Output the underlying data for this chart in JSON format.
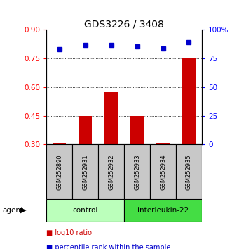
{
  "title": "GDS3226 / 3408",
  "samples": [
    "GSM252890",
    "GSM252931",
    "GSM252932",
    "GSM252933",
    "GSM252934",
    "GSM252935"
  ],
  "log10_ratio": [
    0.305,
    0.45,
    0.575,
    0.45,
    0.31,
    0.75
  ],
  "percentile_rank": [
    0.83,
    0.87,
    0.87,
    0.855,
    0.835,
    0.895
  ],
  "bar_color": "#cc0000",
  "dot_color": "#0000cc",
  "control_label": "control",
  "treatment_label": "interleukin-22",
  "agent_label": "agent",
  "control_color": "#bbffbb",
  "treatment_color": "#44dd44",
  "ylim_left": [
    0.3,
    0.9
  ],
  "ylim_right": [
    0.0,
    1.0
  ],
  "yticks_left": [
    0.3,
    0.45,
    0.6,
    0.75,
    0.9
  ],
  "yticks_right_vals": [
    0.0,
    0.25,
    0.5,
    0.75,
    1.0
  ],
  "yticks_right_labels": [
    "0",
    "25",
    "50",
    "75",
    "100%"
  ],
  "gridlines": [
    0.45,
    0.6,
    0.75
  ],
  "legend_log10": "log10 ratio",
  "legend_percentile": "percentile rank within the sample",
  "bar_bottom": 0.3,
  "figsize": [
    3.31,
    3.54
  ],
  "dpi": 100
}
